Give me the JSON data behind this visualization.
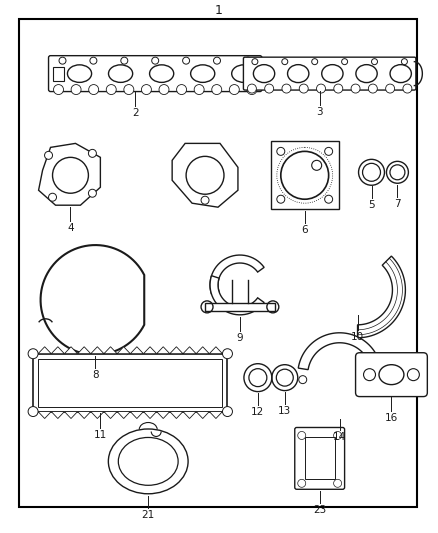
{
  "title": "1",
  "background_color": "#ffffff",
  "border_color": "#000000",
  "line_color": "#1a1a1a",
  "figsize": [
    4.38,
    5.33
  ],
  "dpi": 100
}
